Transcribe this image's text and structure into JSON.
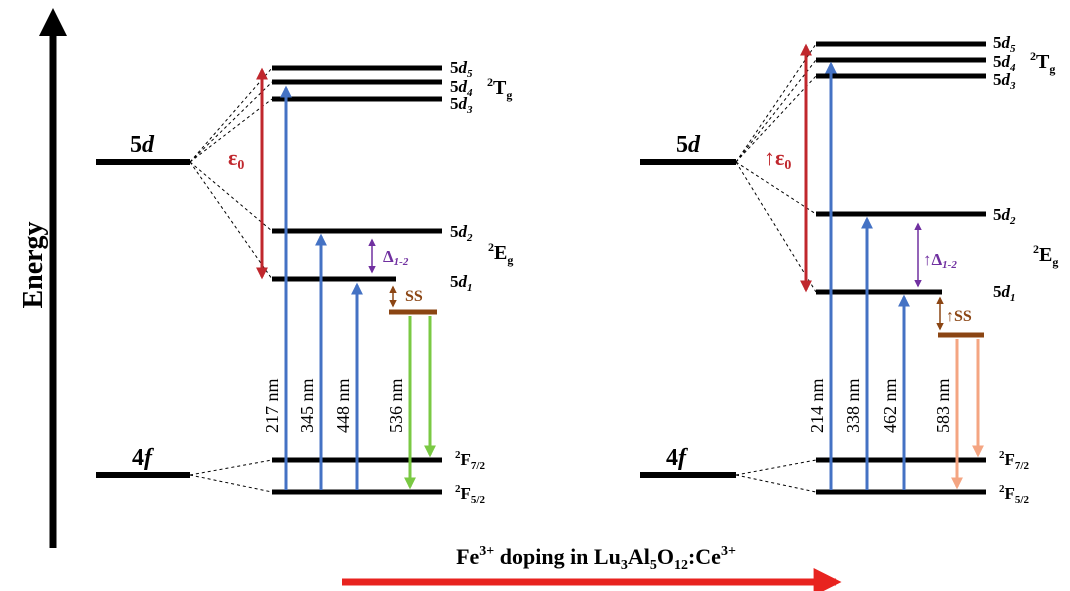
{
  "energy_axis": {
    "label": "Energy"
  },
  "colors": {
    "black": "#000000",
    "blue": "#4472c4",
    "red": "#c0272d",
    "purple": "#7030a0",
    "brown": "#8b4513",
    "green": "#7ac943",
    "orange": "#f4a582",
    "doping_arrow": "#e8231f"
  },
  "panels": [
    {
      "id": "left",
      "config_5d": {
        "text": "5",
        "italic": "d"
      },
      "config_4f": {
        "text": "4",
        "italic": "f"
      },
      "eps": {
        "prefix": "",
        "sym": "ε",
        "sub": "0"
      },
      "delta": {
        "prefix": "",
        "sym": "Δ",
        "sub": "1-2"
      },
      "ss": {
        "prefix": "",
        "text": "SS"
      },
      "d_levels": {
        "d5": "5",
        "d4": "5",
        "d3": "5",
        "d2": "5",
        "d1": "5",
        "italic": "d",
        "subs": [
          "5",
          "4",
          "3",
          "2",
          "1"
        ]
      },
      "term_T": {
        "sup": "2",
        "main": "T",
        "sub": "g"
      },
      "term_E": {
        "sup": "2",
        "main": "E",
        "sub": "g"
      },
      "term_F72": {
        "sup": "2",
        "main": "F",
        "sub": "7/2"
      },
      "term_F52": {
        "sup": "2",
        "main": "F",
        "sub": "5/2"
      },
      "transitions": [
        {
          "label": "217 nm",
          "kind": "excitation",
          "color": "blue"
        },
        {
          "label": "345 nm",
          "kind": "excitation",
          "color": "blue"
        },
        {
          "label": "448 nm",
          "kind": "excitation",
          "color": "blue"
        },
        {
          "label": "536 nm",
          "kind": "emission",
          "color": "green"
        }
      ]
    },
    {
      "id": "right",
      "config_5d": {
        "text": "5",
        "italic": "d"
      },
      "config_4f": {
        "text": "4",
        "italic": "f"
      },
      "eps": {
        "prefix": "↑",
        "sym": "ε",
        "sub": "0"
      },
      "delta": {
        "prefix": "↑",
        "sym": "Δ",
        "sub": "1-2"
      },
      "ss": {
        "prefix": "↑",
        "text": "SS"
      },
      "d_levels": {
        "d5": "5",
        "d4": "5",
        "d3": "5",
        "d2": "5",
        "d1": "5",
        "italic": "d",
        "subs": [
          "5",
          "4",
          "3",
          "2",
          "1"
        ]
      },
      "term_T": {
        "sup": "2",
        "main": "T",
        "sub": "g"
      },
      "term_E": {
        "sup": "2",
        "main": "E",
        "sub": "g"
      },
      "term_F72": {
        "sup": "2",
        "main": "F",
        "sub": "7/2"
      },
      "term_F52": {
        "sup": "2",
        "main": "F",
        "sub": "5/2"
      },
      "transitions": [
        {
          "label": "214 nm",
          "kind": "excitation",
          "color": "blue"
        },
        {
          "label": "338 nm",
          "kind": "excitation",
          "color": "blue"
        },
        {
          "label": "462 nm",
          "kind": "excitation",
          "color": "blue"
        },
        {
          "label": "583 nm",
          "kind": "emission",
          "color": "orange"
        }
      ]
    }
  ],
  "doping": {
    "prefix": "Fe",
    "prefix_sup": "3+",
    "middle": " doping in Lu",
    "lu_sub": "3",
    "al": "Al",
    "al_sub": "5",
    "o": "O",
    "o_sub": "12",
    "ce": ":Ce",
    "ce_sup": "3+"
  }
}
